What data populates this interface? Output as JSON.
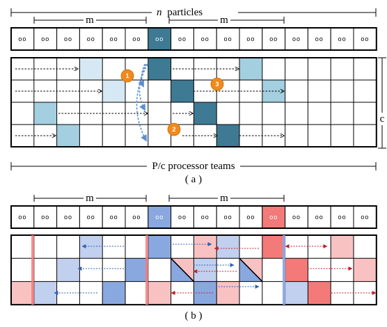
{
  "labels": {
    "n_prefix": "n",
    "n_particles": "particles",
    "m": "m",
    "c": "c",
    "teams": "P/c processor teams",
    "caption_a": "( a )",
    "caption_b": "( b )",
    "particle_glyph": "oo"
  },
  "markers": [
    "1",
    "2",
    "3"
  ],
  "grid": {
    "columns": 16,
    "rows_a": 4,
    "rows_b": 3,
    "m": 6,
    "c": 4
  },
  "colors": {
    "light_blue": "#d6e8f3",
    "mid_blue": "#a3cfe0",
    "dark_teal": "#3e7a93",
    "marker_orange": "#f08a1c",
    "fig_b_blue": "#8aa8e0",
    "fig_b_light_blue": "#c2d0ef",
    "fig_b_red": "#f47a7a",
    "fig_b_light_red": "#f9c2c2",
    "arrow_blue": "#2d5fb5",
    "arrow_red": "#c0202a",
    "curve_blue": "#5b8fd1"
  }
}
